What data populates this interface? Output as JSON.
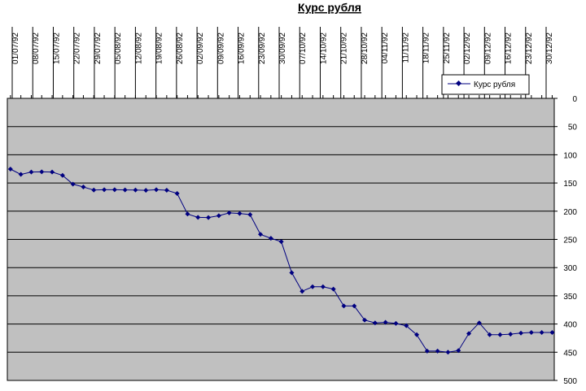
{
  "chart_data": {
    "type": "line",
    "title": "Курс рубля",
    "xlabel": "",
    "ylabel": "",
    "ylim": [
      0,
      500
    ],
    "y_reversed": true,
    "y_ticks": [
      "0",
      "50",
      "100",
      "150",
      "200",
      "250",
      "300",
      "350",
      "400",
      "450",
      "500"
    ],
    "x_tick_labels": [
      "01/07/92",
      "08/07/92",
      "15/07/92",
      "22/07/92",
      "29/07/92",
      "05/08/92",
      "12/08/92",
      "19/08/92",
      "26/08/92",
      "02/09/92",
      "09/09/92",
      "16/09/92",
      "23/09/92",
      "30/09/92",
      "07/10/92",
      "14/10/92",
      "21/10/92",
      "28/10/92",
      "04/11/92",
      "11/11/92",
      "18/11/92",
      "25/11/92",
      "02/12/92",
      "09/12/92",
      "16/12/92",
      "23/12/92",
      "30/12/92"
    ],
    "grid": true,
    "legend_position": "top-right",
    "series": [
      {
        "name": "Курс рубля",
        "color": "#000080",
        "values": [
          125.3,
          134.8,
          130.5,
          130.3,
          130.5,
          136.5,
          152.0,
          157.0,
          162.5,
          162.0,
          162.0,
          162.2,
          162.4,
          163.0,
          162.0,
          162.8,
          168.5,
          205.0,
          211.0,
          211.2,
          208.0,
          203.0,
          204.0,
          206.0,
          241.0,
          248.0,
          254.0,
          309.0,
          342.0,
          334.0,
          334.0,
          338.0,
          368.0,
          368.0,
          393.0,
          398.0,
          397.0,
          399.0,
          403.0,
          419.0,
          448.0,
          448.0,
          450.0,
          447.0,
          417.0,
          398.0,
          419.0,
          419.0,
          418.0,
          416.0,
          415.0,
          415.0,
          415.0
        ]
      }
    ]
  }
}
